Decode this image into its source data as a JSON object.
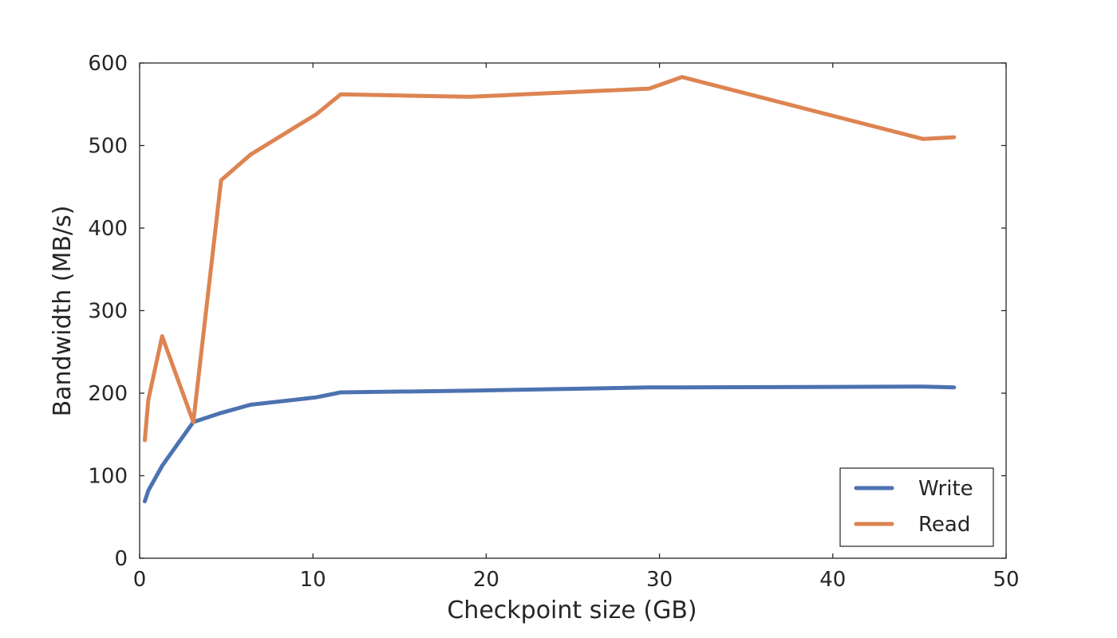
{
  "chart_data": {
    "type": "line",
    "xlabel": "Checkpoint size (GB)",
    "ylabel": "Bandwidth (MB/s)",
    "xlim": [
      0,
      50
    ],
    "ylim": [
      0,
      600
    ],
    "xticks": [
      0,
      10,
      20,
      30,
      40,
      50
    ],
    "yticks": [
      0,
      100,
      200,
      300,
      400,
      500,
      600
    ],
    "grid": false,
    "legend_position": "bottom-right",
    "series": [
      {
        "name": "Write",
        "color": "#4c72b0",
        "x": [
          0.3,
          0.5,
          1.3,
          3.1,
          4.7,
          6.4,
          10.2,
          11.6,
          19.0,
          29.4,
          31.3,
          45.2,
          47.0
        ],
        "y": [
          69,
          82,
          112,
          165,
          176,
          186,
          195,
          201,
          203,
          207,
          207,
          208,
          207
        ]
      },
      {
        "name": "Read",
        "color": "#dd8452",
        "x": [
          0.3,
          0.5,
          1.3,
          3.1,
          4.7,
          6.4,
          10.2,
          11.6,
          19.0,
          29.4,
          31.3,
          45.2,
          47.0
        ],
        "y": [
          143,
          192,
          269,
          165,
          458,
          489,
          538,
          562,
          559,
          569,
          583,
          508,
          510
        ]
      }
    ]
  }
}
